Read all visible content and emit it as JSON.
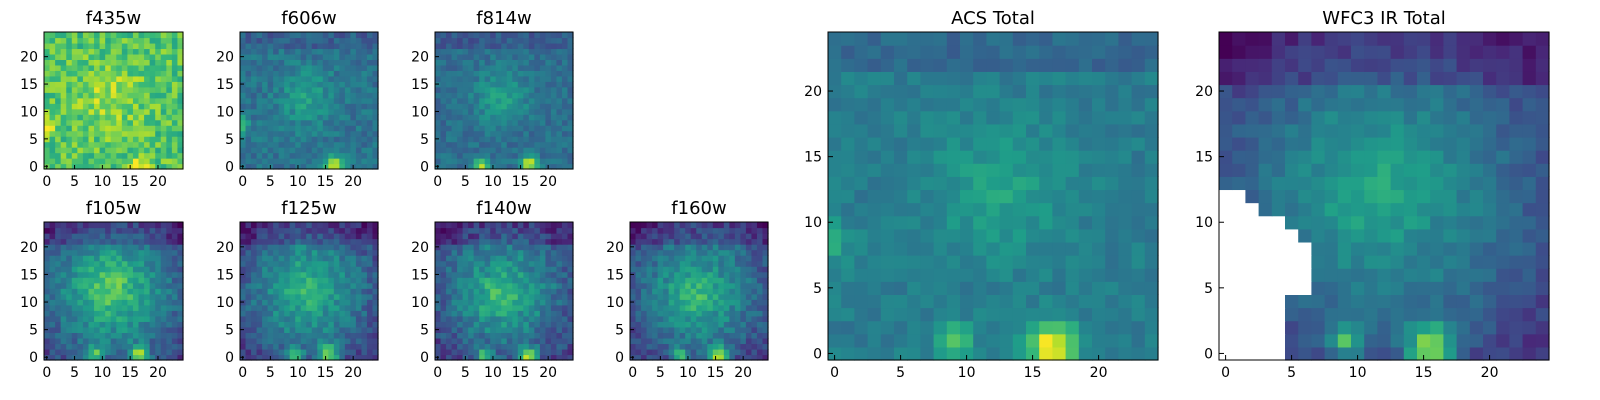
{
  "chart_data": [
    {
      "type": "heatmap",
      "title": "f435w",
      "x_ticks": [
        0,
        5,
        10,
        15,
        20
      ],
      "y_ticks": [
        0,
        5,
        10,
        15,
        20
      ],
      "xlim": [
        0,
        25
      ],
      "ylim": [
        0,
        25
      ],
      "grid_size": [
        25,
        25
      ],
      "colormap": "viridis",
      "value_range": [
        0,
        1
      ],
      "base_level": 0.72,
      "noise": 0.14,
      "shape": "patchy",
      "features": [
        {
          "center": [
            12,
            13
          ],
          "sigma": 4,
          "amp": 0.15
        },
        {
          "center": [
            17,
            0.5
          ],
          "sigma": 1.2,
          "amp": 0.35
        },
        {
          "center": [
            0,
            8
          ],
          "sigma": 1.2,
          "amp": 0.3
        }
      ]
    },
    {
      "type": "heatmap",
      "title": "f606w",
      "x_ticks": [
        0,
        5,
        10,
        15,
        20
      ],
      "y_ticks": [
        0,
        5,
        10,
        15,
        20
      ],
      "xlim": [
        0,
        25
      ],
      "ylim": [
        0,
        25
      ],
      "grid_size": [
        25,
        25
      ],
      "colormap": "viridis",
      "value_range": [
        0,
        1
      ],
      "base_level": 0.38,
      "noise": 0.09,
      "shape": "diffuse",
      "features": [
        {
          "center": [
            12,
            13
          ],
          "sigma": 3.5,
          "amp": 0.18
        },
        {
          "center": [
            17,
            1
          ],
          "sigma": 1.1,
          "amp": 0.6
        },
        {
          "center": [
            0,
            8
          ],
          "sigma": 1.1,
          "amp": 0.35
        }
      ]
    },
    {
      "type": "heatmap",
      "title": "f814w",
      "x_ticks": [
        0,
        5,
        10,
        15,
        20
      ],
      "y_ticks": [
        0,
        5,
        10,
        15,
        20
      ],
      "xlim": [
        0,
        25
      ],
      "ylim": [
        0,
        25
      ],
      "grid_size": [
        25,
        25
      ],
      "colormap": "viridis",
      "value_range": [
        0,
        1
      ],
      "base_level": 0.36,
      "noise": 0.08,
      "shape": "diffuse",
      "features": [
        {
          "center": [
            12,
            13
          ],
          "sigma": 3.5,
          "amp": 0.2
        },
        {
          "center": [
            17,
            1
          ],
          "sigma": 1.1,
          "amp": 0.62
        },
        {
          "center": [
            8.5,
            0.8
          ],
          "sigma": 0.9,
          "amp": 0.5
        }
      ]
    },
    {
      "type": "heatmap",
      "title": "f105w",
      "x_ticks": [
        0,
        5,
        10,
        15,
        20
      ],
      "y_ticks": [
        0,
        5,
        10,
        15,
        20
      ],
      "xlim": [
        0,
        25
      ],
      "ylim": [
        0,
        25
      ],
      "grid_size": [
        25,
        25
      ],
      "colormap": "viridis",
      "value_range": [
        0,
        1
      ],
      "base_level": 0.45,
      "noise": 0.1,
      "shape": "ring",
      "features": [
        {
          "center": [
            12,
            13
          ],
          "sigma": 4,
          "amp": 0.3
        },
        {
          "center": [
            17,
            1
          ],
          "sigma": 1.2,
          "amp": 0.55
        },
        {
          "center": [
            9,
            1
          ],
          "sigma": 1,
          "amp": 0.45
        }
      ]
    },
    {
      "type": "heatmap",
      "title": "f125w",
      "x_ticks": [
        0,
        5,
        10,
        15,
        20
      ],
      "y_ticks": [
        0,
        5,
        10,
        15,
        20
      ],
      "xlim": [
        0,
        25
      ],
      "ylim": [
        0,
        25
      ],
      "grid_size": [
        25,
        25
      ],
      "colormap": "viridis",
      "value_range": [
        0,
        1
      ],
      "base_level": 0.42,
      "noise": 0.1,
      "shape": "ring",
      "features": [
        {
          "center": [
            12,
            13
          ],
          "sigma": 4,
          "amp": 0.22
        },
        {
          "center": [
            16,
            1
          ],
          "sigma": 1.2,
          "amp": 0.58
        },
        {
          "center": [
            10,
            1
          ],
          "sigma": 0.9,
          "amp": 0.45
        }
      ]
    },
    {
      "type": "heatmap",
      "title": "f140w",
      "x_ticks": [
        0,
        5,
        10,
        15,
        20
      ],
      "y_ticks": [
        0,
        5,
        10,
        15,
        20
      ],
      "xlim": [
        0,
        25
      ],
      "ylim": [
        0,
        25
      ],
      "grid_size": [
        25,
        25
      ],
      "colormap": "viridis",
      "value_range": [
        0,
        1
      ],
      "base_level": 0.42,
      "noise": 0.11,
      "shape": "ring",
      "features": [
        {
          "center": [
            12,
            12
          ],
          "sigma": 3.5,
          "amp": 0.25
        },
        {
          "center": [
            17,
            0.8
          ],
          "sigma": 1.2,
          "amp": 0.6
        },
        {
          "center": [
            9,
            1
          ],
          "sigma": 0.9,
          "amp": 0.45
        }
      ]
    },
    {
      "type": "heatmap",
      "title": "f160w",
      "x_ticks": [
        0,
        5,
        10,
        15,
        20
      ],
      "y_ticks": [
        0,
        5,
        10,
        15,
        20
      ],
      "xlim": [
        0,
        25
      ],
      "ylim": [
        0,
        25
      ],
      "grid_size": [
        25,
        25
      ],
      "colormap": "viridis",
      "value_range": [
        0,
        1
      ],
      "base_level": 0.42,
      "noise": 0.1,
      "shape": "ring",
      "features": [
        {
          "center": [
            12,
            12
          ],
          "sigma": 3.5,
          "amp": 0.25
        },
        {
          "center": [
            16,
            0.8
          ],
          "sigma": 1.2,
          "amp": 0.58
        },
        {
          "center": [
            9,
            1
          ],
          "sigma": 0.9,
          "amp": 0.45
        }
      ]
    },
    {
      "type": "heatmap",
      "title": "ACS Total",
      "x_ticks": [
        0,
        5,
        10,
        15,
        20
      ],
      "y_ticks": [
        0,
        5,
        10,
        15,
        20
      ],
      "xlim": [
        0,
        25
      ],
      "ylim": [
        0,
        25
      ],
      "grid_size": [
        25,
        25
      ],
      "colormap": "viridis",
      "value_range": [
        0,
        1
      ],
      "base_level": 0.42,
      "noise": 0.06,
      "shape": "diffuse",
      "features": [
        {
          "center": [
            13,
            13
          ],
          "sigma": 3.5,
          "amp": 0.15
        },
        {
          "center": [
            17,
            1
          ],
          "sigma": 1.3,
          "amp": 0.6
        },
        {
          "center": [
            9.5,
            1.5
          ],
          "sigma": 0.9,
          "amp": 0.35
        },
        {
          "center": [
            0,
            9
          ],
          "sigma": 1.1,
          "amp": 0.25
        }
      ]
    },
    {
      "type": "heatmap",
      "title": "WFC3 IR Total",
      "x_ticks": [
        0,
        5,
        10,
        15,
        20
      ],
      "y_ticks": [
        0,
        5,
        10,
        15,
        20
      ],
      "xlim": [
        0,
        25
      ],
      "ylim": [
        0,
        25
      ],
      "grid_size": [
        25,
        25
      ],
      "colormap": "viridis",
      "value_range": [
        0,
        1
      ],
      "base_level": 0.4,
      "noise": 0.06,
      "shape": "ring",
      "masked_region": "white area lower-left (columns 0-6, rows 0-12)",
      "features": [
        {
          "center": [
            12,
            13
          ],
          "sigma": 3.5,
          "amp": 0.2
        },
        {
          "center": [
            16,
            1
          ],
          "sigma": 1.2,
          "amp": 0.6
        },
        {
          "center": [
            9.5,
            1.5
          ],
          "sigma": 0.9,
          "amp": 0.42
        }
      ]
    }
  ]
}
